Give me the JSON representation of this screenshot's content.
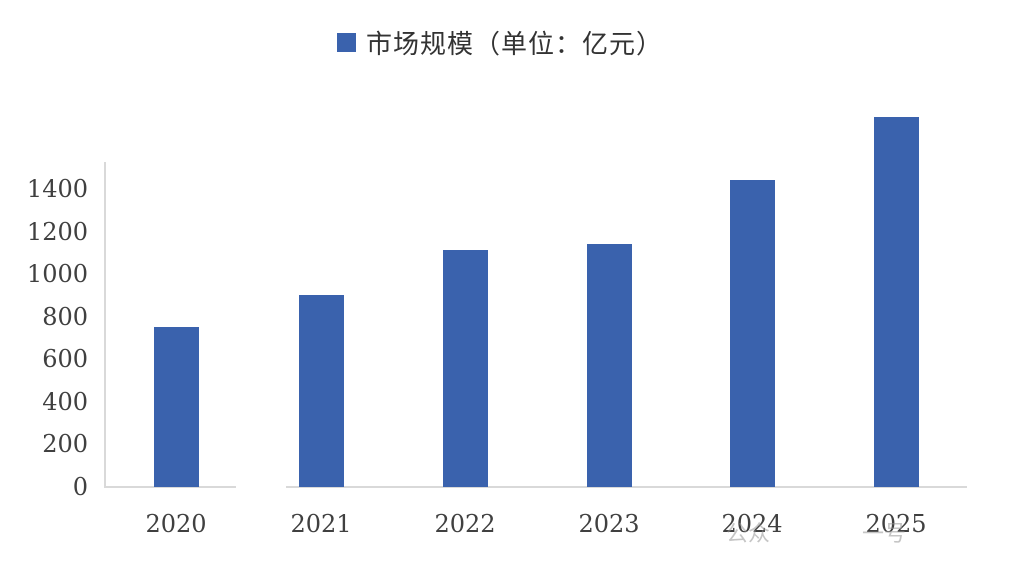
{
  "chart_data": {
    "type": "bar",
    "title": "",
    "legend": [
      {
        "label": "市场规模（单位：亿元）",
        "color": "#3a62ad"
      }
    ],
    "legend_position": "top",
    "categories": [
      "2020",
      "2021",
      "2022",
      "2023",
      "2024",
      "2025"
    ],
    "series": [
      {
        "name": "市场规模（单位：亿元）",
        "values": [
          750,
          900,
          1115,
          1140,
          1440,
          1740
        ]
      }
    ],
    "xlabel": "",
    "ylabel": "",
    "ylim": [
      0,
      1400
    ],
    "yticks": [
      "0",
      "200",
      "400",
      "600",
      "800",
      "1000",
      "1200",
      "1400"
    ],
    "grid": false,
    "bar_color": "#3a62ad"
  },
  "legend": {
    "label": "市场规模（单位：亿元）"
  },
  "watermark": {
    "left": "公众",
    "right": "一号"
  }
}
